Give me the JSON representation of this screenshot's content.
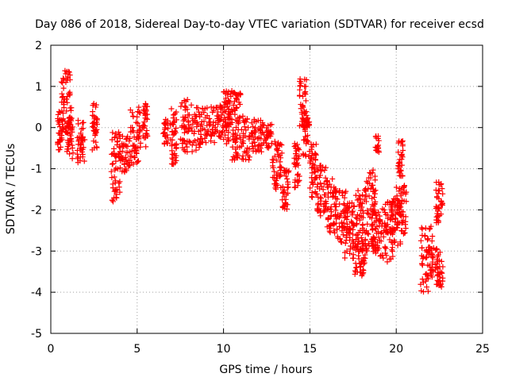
{
  "chart_data": {
    "type": "scatter",
    "title": "Day 086 of 2018, Sidereal Day-to-day VTEC variation (SDTVAR) for receiver ecsd",
    "xlabel": "GPS time / hours",
    "ylabel": "SDTVAR / TECUs",
    "xlim": [
      0,
      25
    ],
    "ylim": [
      -5,
      2
    ],
    "xticks": [
      0,
      5,
      10,
      15,
      20,
      25
    ],
    "yticks": [
      -5,
      -4,
      -3,
      -2,
      -1,
      0,
      1,
      2
    ],
    "grid": true,
    "marker": "+",
    "color": "#ff0000",
    "series": [
      {
        "name": "SDTVAR",
        "clusters": [
          {
            "x": [
              0.4,
              0.7
            ],
            "y": [
              -0.6,
              0.5
            ]
          },
          {
            "x": [
              0.6,
              1.2
            ],
            "y": [
              -0.2,
              1.4
            ]
          },
          {
            "x": [
              0.9,
              1.3
            ],
            "y": [
              -0.8,
              0.3
            ]
          },
          {
            "x": [
              1.5,
              2.0
            ],
            "y": [
              -0.9,
              0.2
            ]
          },
          {
            "x": [
              2.4,
              2.7
            ],
            "y": [
              -0.6,
              0.6
            ]
          },
          {
            "x": [
              3.5,
              4.0
            ],
            "y": [
              -1.8,
              -0.1
            ]
          },
          {
            "x": [
              4.0,
              4.6
            ],
            "y": [
              -1.1,
              -0.2
            ]
          },
          {
            "x": [
              4.6,
              5.2
            ],
            "y": [
              -0.9,
              0.5
            ]
          },
          {
            "x": [
              5.3,
              5.6
            ],
            "y": [
              -0.5,
              0.6
            ]
          },
          {
            "x": [
              6.5,
              6.8
            ],
            "y": [
              -0.4,
              0.2
            ]
          },
          {
            "x": [
              6.9,
              7.3
            ],
            "y": [
              -0.9,
              0.5
            ]
          },
          {
            "x": [
              7.5,
              8.5
            ],
            "y": [
              -0.6,
              0.7
            ]
          },
          {
            "x": [
              8.5,
              9.6
            ],
            "y": [
              -0.5,
              0.5
            ]
          },
          {
            "x": [
              9.6,
              10.4
            ],
            "y": [
              -0.4,
              0.6
            ]
          },
          {
            "x": [
              10.0,
              11.0
            ],
            "y": [
              0.0,
              0.9
            ]
          },
          {
            "x": [
              10.5,
              11.6
            ],
            "y": [
              -0.8,
              0.3
            ]
          },
          {
            "x": [
              11.6,
              12.3
            ],
            "y": [
              -0.6,
              0.2
            ]
          },
          {
            "x": [
              12.3,
              12.8
            ],
            "y": [
              -0.5,
              0.1
            ]
          },
          {
            "x": [
              12.8,
              13.4
            ],
            "y": [
              -1.5,
              -0.3
            ]
          },
          {
            "x": [
              13.4,
              13.8
            ],
            "y": [
              -2.0,
              -1.0
            ]
          },
          {
            "x": [
              14.1,
              14.4
            ],
            "y": [
              -1.5,
              -0.3
            ]
          },
          {
            "x": [
              14.4,
              14.8
            ],
            "y": [
              0.0,
              1.2
            ]
          },
          {
            "x": [
              14.6,
              15.0
            ],
            "y": [
              -0.8,
              0.4
            ]
          },
          {
            "x": [
              15.0,
              15.4
            ],
            "y": [
              -1.7,
              -0.4
            ]
          },
          {
            "x": [
              15.4,
              16.0
            ],
            "y": [
              -2.2,
              -0.9
            ]
          },
          {
            "x": [
              16.0,
              16.5
            ],
            "y": [
              -2.6,
              -1.2
            ]
          },
          {
            "x": [
              16.5,
              17.2
            ],
            "y": [
              -2.8,
              -1.5
            ]
          },
          {
            "x": [
              17.0,
              17.6
            ],
            "y": [
              -3.2,
              -1.8
            ]
          },
          {
            "x": [
              17.6,
              18.3
            ],
            "y": [
              -3.0,
              -1.5
            ]
          },
          {
            "x": [
              17.6,
              18.2
            ],
            "y": [
              -3.6,
              -2.8
            ]
          },
          {
            "x": [
              18.2,
              18.8
            ],
            "y": [
              -3.0,
              -1.0
            ]
          },
          {
            "x": [
              18.6,
              19.2
            ],
            "y": [
              -3.2,
              -2.0
            ]
          },
          {
            "x": [
              18.8,
              19.0
            ],
            "y": [
              -0.6,
              -0.2
            ]
          },
          {
            "x": [
              19.2,
              19.8
            ],
            "y": [
              -3.3,
              -1.8
            ]
          },
          {
            "x": [
              19.7,
              20.3
            ],
            "y": [
              -2.9,
              -1.7
            ]
          },
          {
            "x": [
              20.0,
              20.6
            ],
            "y": [
              -2.6,
              -1.4
            ]
          },
          {
            "x": [
              20.1,
              20.4
            ],
            "y": [
              -1.2,
              -0.3
            ]
          },
          {
            "x": [
              21.4,
              22.1
            ],
            "y": [
              -4.0,
              -2.4
            ]
          },
          {
            "x": [
              22.1,
              22.7
            ],
            "y": [
              -3.9,
              -2.9
            ]
          },
          {
            "x": [
              22.3,
              22.7
            ],
            "y": [
              -2.5,
              -1.3
            ]
          }
        ]
      }
    ]
  }
}
